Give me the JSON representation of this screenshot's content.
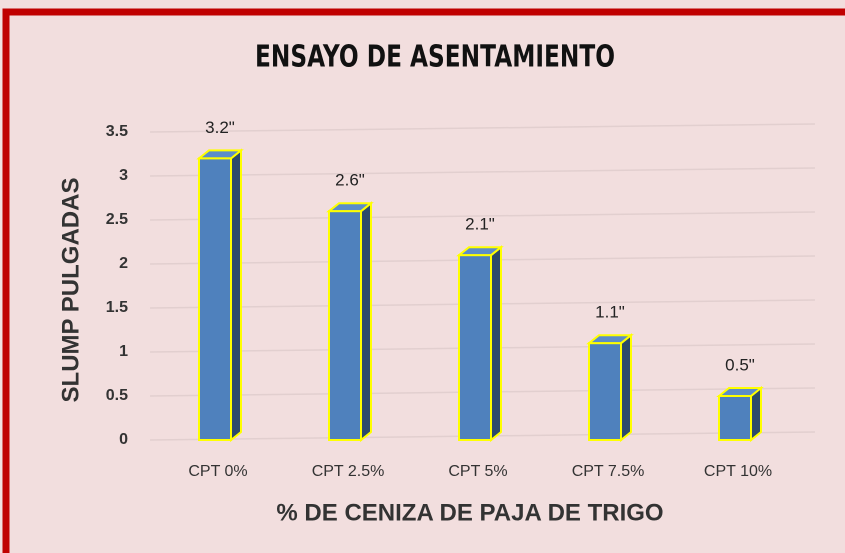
{
  "chart_data": {
    "type": "bar3d",
    "title": "ENSAYO DE ASENTAMIENTO",
    "y_label": "SLUMP PULGADAS",
    "x_label": "% DE CENIZA DE PAJA DE TRIGO",
    "categories": [
      "CPT 0%",
      "CPT 2.5%",
      "CPT 5%",
      "CPT 7.5%",
      "CPT 10%"
    ],
    "values": [
      3.2,
      2.6,
      2.1,
      1.1,
      0.5
    ],
    "value_labels": [
      "3.2\"",
      "2.6\"",
      "2.1\"",
      "1.1\"",
      "0.5\""
    ],
    "color": "#4f81bd",
    "edge_color": "#ffff00",
    "ylim": [
      0,
      3.5
    ],
    "yticks": [
      0,
      0.5,
      1,
      1.5,
      2,
      2.5,
      3,
      3.5
    ],
    "grid": true
  }
}
